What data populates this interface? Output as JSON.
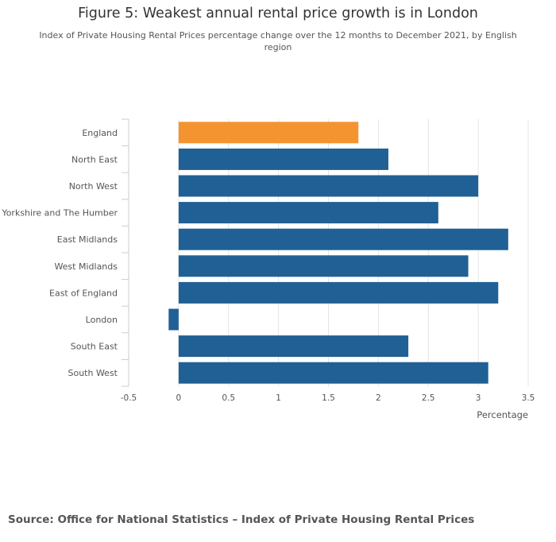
{
  "header": {
    "title": "Figure 5: Weakest annual rental price growth is in London",
    "subtitle": "Index of Private Housing Rental Prices percentage change over the 12 months to December 2021, by English region"
  },
  "footer": {
    "source": "Source: Office for National Statistics – Index of Private Housing Rental Prices"
  },
  "colors": {
    "default_bar": "#206095",
    "highlight_bar": "#f39431",
    "grid": "#e4e4e4",
    "axis": "#cccccc",
    "text": "#555555"
  },
  "chart_data": {
    "type": "bar",
    "orientation": "horizontal",
    "title": "Figure 5: Weakest annual rental price growth is in London",
    "subtitle": "Index of Private Housing Rental Prices percentage change over the 12 months to December 2021, by English region",
    "categories": [
      "England",
      "North East",
      "North West",
      "Yorkshire and The Humber",
      "East Midlands",
      "West Midlands",
      "East of England",
      "London",
      "South East",
      "South West"
    ],
    "values": [
      1.8,
      2.1,
      3.0,
      2.6,
      3.3,
      2.9,
      3.2,
      -0.1,
      2.3,
      3.1
    ],
    "highlight": [
      "England"
    ],
    "xlabel": "Percentage",
    "ylabel": "",
    "xlim": [
      -0.5,
      3.5
    ],
    "xticks": [
      -0.5,
      0,
      0.5,
      1,
      1.5,
      2,
      2.5,
      3,
      3.5
    ],
    "xtick_labels": [
      "-0.5",
      "0",
      "0.5",
      "1",
      "1.5",
      "2",
      "2.5",
      "3",
      "3.5"
    ],
    "grid": true,
    "legend": "none"
  }
}
